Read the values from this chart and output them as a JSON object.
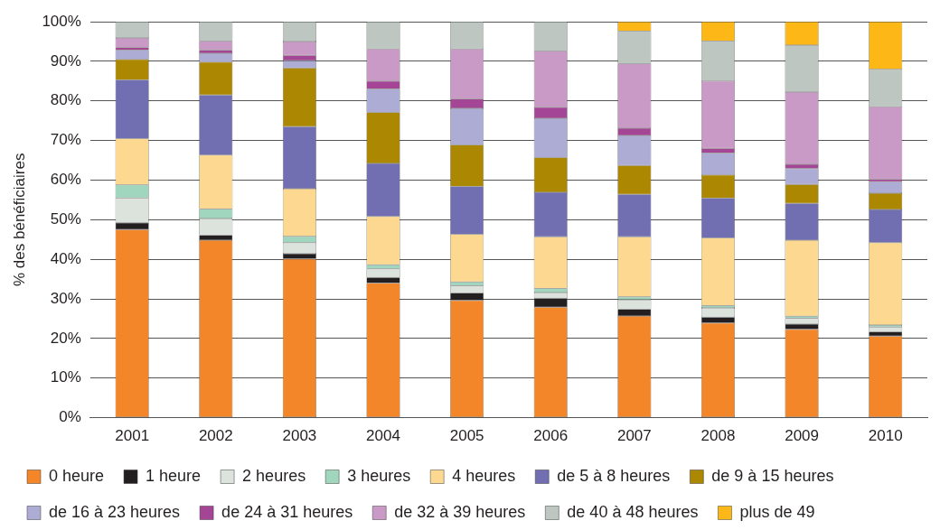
{
  "chart_data": {
    "type": "bar",
    "stacked": true,
    "ylabel": "% des bénéficiaires",
    "categories": [
      "2001",
      "2002",
      "2003",
      "2004",
      "2005",
      "2006",
      "2007",
      "2008",
      "2009",
      "2010"
    ],
    "ylim": [
      0,
      100
    ],
    "yticks": [
      {
        "value": 0,
        "label": "0%"
      },
      {
        "value": 10,
        "label": "10%"
      },
      {
        "value": 20,
        "label": "20%"
      },
      {
        "value": 30,
        "label": "30%"
      },
      {
        "value": 40,
        "label": "40%"
      },
      {
        "value": 50,
        "label": "50%"
      },
      {
        "value": 60,
        "label": "60%"
      },
      {
        "value": 70,
        "label": "70%"
      },
      {
        "value": 80,
        "label": "80%"
      },
      {
        "value": 90,
        "label": "90%"
      },
      {
        "value": 100,
        "label": "100%"
      }
    ],
    "grid": "y",
    "legend": "bottom",
    "series": [
      {
        "name": "0 heure",
        "color": "#f4862a",
        "values": [
          47.5,
          44.8,
          40.1,
          34.0,
          29.6,
          27.9,
          25.7,
          23.9,
          22.3,
          20.6
        ]
      },
      {
        "name": "1 heure",
        "color": "#231f20",
        "values": [
          1.7,
          1.3,
          1.3,
          1.4,
          1.9,
          2.3,
          1.7,
          1.5,
          1.3,
          1.1
        ]
      },
      {
        "name": "2 heures",
        "color": "#dce2dc",
        "values": [
          6.3,
          4.2,
          2.8,
          2.2,
          1.8,
          1.4,
          2.4,
          2.3,
          1.5,
          1.2
        ]
      },
      {
        "name": "3 heures",
        "color": "#a0d6bd",
        "values": [
          3.3,
          2.4,
          1.6,
          1.0,
          1.0,
          1.0,
          0.7,
          0.6,
          0.5,
          0.5
        ]
      },
      {
        "name": "4 heures",
        "color": "#fdd890",
        "values": [
          11.7,
          13.6,
          12.0,
          12.2,
          12.0,
          13.1,
          15.2,
          17.1,
          19.2,
          20.8
        ]
      },
      {
        "name": "de 5 à 8 heures",
        "color": "#716fb2",
        "values": [
          14.8,
          15.2,
          15.7,
          13.4,
          12.1,
          11.2,
          10.7,
          10.0,
          9.3,
          8.4
        ]
      },
      {
        "name": "de 9 à 15 heures",
        "color": "#ab8702",
        "values": [
          5.2,
          8.3,
          14.8,
          12.9,
          10.5,
          8.8,
          7.3,
          5.9,
          4.8,
          4.1
        ]
      },
      {
        "name": "de 16 à 23 heures",
        "color": "#adacd4",
        "values": [
          2.3,
          2.2,
          1.9,
          5.9,
          9.2,
          9.9,
          7.6,
          5.5,
          4.0,
          2.9
        ]
      },
      {
        "name": "de 24 à 31 heures",
        "color": "#a44596",
        "values": [
          0.7,
          0.8,
          1.3,
          2.0,
          2.4,
          2.8,
          1.8,
          1.2,
          1.1,
          0.6
        ]
      },
      {
        "name": "de 32 à 39 heures",
        "color": "#ca9ac6",
        "values": [
          2.4,
          2.3,
          3.5,
          8.1,
          12.6,
          14.2,
          16.3,
          17.0,
          18.2,
          18.3
        ]
      },
      {
        "name": "de 40 à 48 heures",
        "color": "#bec6c1",
        "values": [
          4.1,
          4.9,
          5.0,
          6.9,
          6.9,
          7.4,
          8.2,
          10.1,
          11.9,
          9.5
        ]
      },
      {
        "name": "plus de 49",
        "color": "#fdb817",
        "values": [
          0,
          0,
          0,
          0,
          0,
          0,
          2.4,
          4.9,
          5.9,
          12.0
        ]
      }
    ]
  }
}
